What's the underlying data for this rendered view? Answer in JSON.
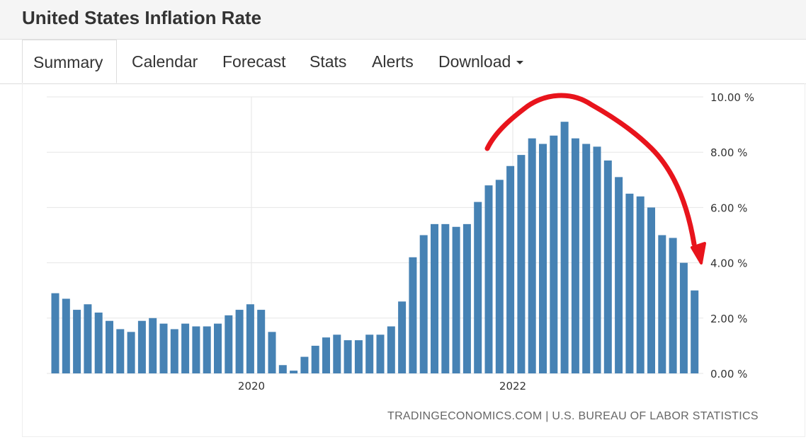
{
  "header": {
    "title": "United States Inflation Rate"
  },
  "tabs": [
    {
      "label": "Summary"
    },
    {
      "label": "Calendar"
    },
    {
      "label": "Forecast"
    },
    {
      "label": "Stats"
    },
    {
      "label": "Alerts"
    },
    {
      "label": "Download"
    }
  ],
  "credits": "TRADINGECONOMICS.COM | U.S. BUREAU OF LABOR STATISTICS",
  "colors": {
    "bar": "#4682b4",
    "annotation": "#e8141c",
    "grid": "#e6e6e6"
  },
  "chart_data": {
    "type": "bar",
    "title": "",
    "xlabel": "",
    "ylabel": "",
    "ylim": [
      0,
      10
    ],
    "y_ticks": [
      "0.00 %",
      "2.00 %",
      "4.00 %",
      "6.00 %",
      "8.00 %",
      "10.00 %"
    ],
    "x_ticks": [
      "2020",
      "2022"
    ],
    "grid": true,
    "values": [
      2.9,
      2.7,
      2.3,
      2.5,
      2.2,
      1.9,
      1.6,
      1.5,
      1.9,
      2.0,
      1.8,
      1.6,
      1.8,
      1.7,
      1.7,
      1.8,
      2.1,
      2.3,
      2.5,
      2.3,
      1.5,
      0.3,
      0.1,
      0.6,
      1.0,
      1.3,
      1.4,
      1.2,
      1.2,
      1.4,
      1.4,
      1.7,
      2.6,
      4.2,
      5.0,
      5.4,
      5.4,
      5.3,
      5.4,
      6.2,
      6.8,
      7.0,
      7.5,
      7.9,
      8.5,
      8.3,
      8.6,
      9.1,
      8.5,
      8.3,
      8.2,
      7.7,
      7.1,
      6.5,
      6.4,
      6.0,
      5.0,
      4.9,
      4.0,
      3.0
    ],
    "annotation": "arrow"
  }
}
